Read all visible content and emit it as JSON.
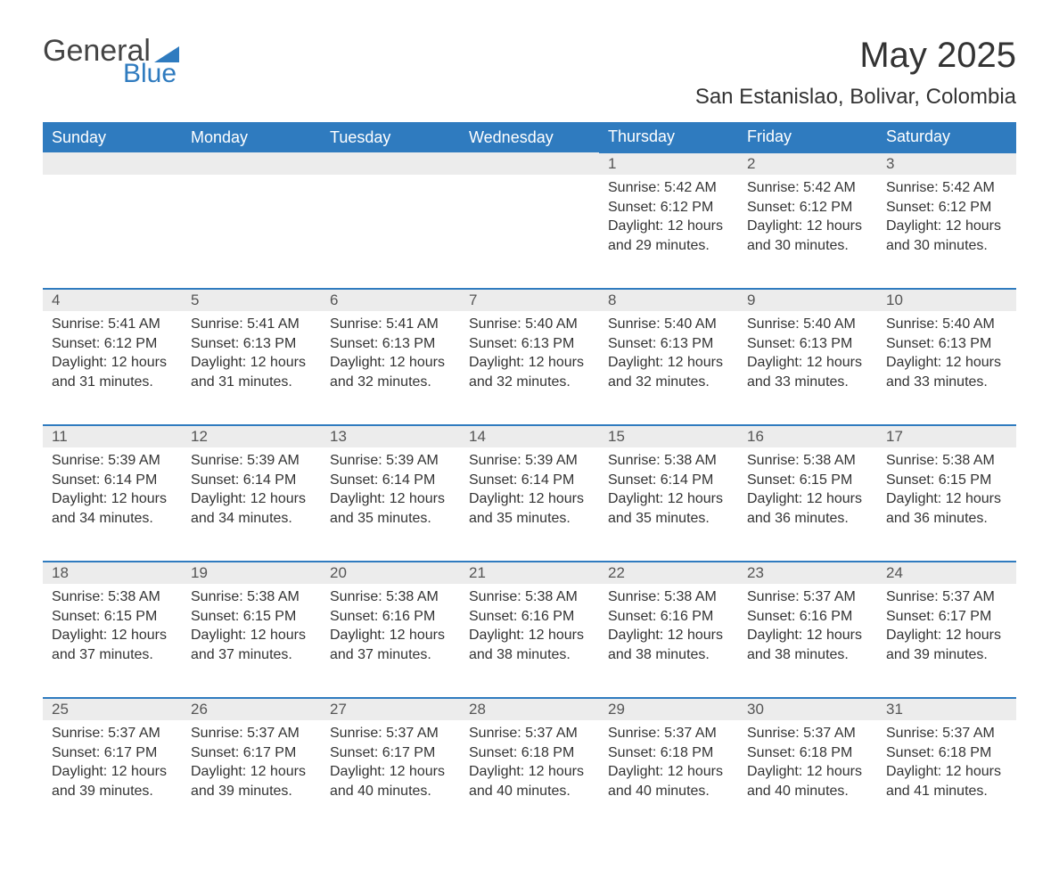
{
  "logo": {
    "general": "General",
    "blue": "Blue"
  },
  "title": "May 2025",
  "location": "San Estanislao, Bolivar, Colombia",
  "colors": {
    "header_bg": "#2f7bbf",
    "header_fg": "#ffffff",
    "daynum_bg": "#ececec",
    "text": "#333333"
  },
  "day_headers": [
    "Sunday",
    "Monday",
    "Tuesday",
    "Wednesday",
    "Thursday",
    "Friday",
    "Saturday"
  ],
  "weeks": [
    [
      null,
      null,
      null,
      null,
      {
        "n": "1",
        "sr": "5:42 AM",
        "ss": "6:12 PM",
        "dl": "12 hours and 29 minutes."
      },
      {
        "n": "2",
        "sr": "5:42 AM",
        "ss": "6:12 PM",
        "dl": "12 hours and 30 minutes."
      },
      {
        "n": "3",
        "sr": "5:42 AM",
        "ss": "6:12 PM",
        "dl": "12 hours and 30 minutes."
      }
    ],
    [
      {
        "n": "4",
        "sr": "5:41 AM",
        "ss": "6:12 PM",
        "dl": "12 hours and 31 minutes."
      },
      {
        "n": "5",
        "sr": "5:41 AM",
        "ss": "6:13 PM",
        "dl": "12 hours and 31 minutes."
      },
      {
        "n": "6",
        "sr": "5:41 AM",
        "ss": "6:13 PM",
        "dl": "12 hours and 32 minutes."
      },
      {
        "n": "7",
        "sr": "5:40 AM",
        "ss": "6:13 PM",
        "dl": "12 hours and 32 minutes."
      },
      {
        "n": "8",
        "sr": "5:40 AM",
        "ss": "6:13 PM",
        "dl": "12 hours and 32 minutes."
      },
      {
        "n": "9",
        "sr": "5:40 AM",
        "ss": "6:13 PM",
        "dl": "12 hours and 33 minutes."
      },
      {
        "n": "10",
        "sr": "5:40 AM",
        "ss": "6:13 PM",
        "dl": "12 hours and 33 minutes."
      }
    ],
    [
      {
        "n": "11",
        "sr": "5:39 AM",
        "ss": "6:14 PM",
        "dl": "12 hours and 34 minutes."
      },
      {
        "n": "12",
        "sr": "5:39 AM",
        "ss": "6:14 PM",
        "dl": "12 hours and 34 minutes."
      },
      {
        "n": "13",
        "sr": "5:39 AM",
        "ss": "6:14 PM",
        "dl": "12 hours and 35 minutes."
      },
      {
        "n": "14",
        "sr": "5:39 AM",
        "ss": "6:14 PM",
        "dl": "12 hours and 35 minutes."
      },
      {
        "n": "15",
        "sr": "5:38 AM",
        "ss": "6:14 PM",
        "dl": "12 hours and 35 minutes."
      },
      {
        "n": "16",
        "sr": "5:38 AM",
        "ss": "6:15 PM",
        "dl": "12 hours and 36 minutes."
      },
      {
        "n": "17",
        "sr": "5:38 AM",
        "ss": "6:15 PM",
        "dl": "12 hours and 36 minutes."
      }
    ],
    [
      {
        "n": "18",
        "sr": "5:38 AM",
        "ss": "6:15 PM",
        "dl": "12 hours and 37 minutes."
      },
      {
        "n": "19",
        "sr": "5:38 AM",
        "ss": "6:15 PM",
        "dl": "12 hours and 37 minutes."
      },
      {
        "n": "20",
        "sr": "5:38 AM",
        "ss": "6:16 PM",
        "dl": "12 hours and 37 minutes."
      },
      {
        "n": "21",
        "sr": "5:38 AM",
        "ss": "6:16 PM",
        "dl": "12 hours and 38 minutes."
      },
      {
        "n": "22",
        "sr": "5:38 AM",
        "ss": "6:16 PM",
        "dl": "12 hours and 38 minutes."
      },
      {
        "n": "23",
        "sr": "5:37 AM",
        "ss": "6:16 PM",
        "dl": "12 hours and 38 minutes."
      },
      {
        "n": "24",
        "sr": "5:37 AM",
        "ss": "6:17 PM",
        "dl": "12 hours and 39 minutes."
      }
    ],
    [
      {
        "n": "25",
        "sr": "5:37 AM",
        "ss": "6:17 PM",
        "dl": "12 hours and 39 minutes."
      },
      {
        "n": "26",
        "sr": "5:37 AM",
        "ss": "6:17 PM",
        "dl": "12 hours and 39 minutes."
      },
      {
        "n": "27",
        "sr": "5:37 AM",
        "ss": "6:17 PM",
        "dl": "12 hours and 40 minutes."
      },
      {
        "n": "28",
        "sr": "5:37 AM",
        "ss": "6:18 PM",
        "dl": "12 hours and 40 minutes."
      },
      {
        "n": "29",
        "sr": "5:37 AM",
        "ss": "6:18 PM",
        "dl": "12 hours and 40 minutes."
      },
      {
        "n": "30",
        "sr": "5:37 AM",
        "ss": "6:18 PM",
        "dl": "12 hours and 40 minutes."
      },
      {
        "n": "31",
        "sr": "5:37 AM",
        "ss": "6:18 PM",
        "dl": "12 hours and 41 minutes."
      }
    ]
  ],
  "labels": {
    "sunrise": "Sunrise:",
    "sunset": "Sunset:",
    "daylight": "Daylight:"
  }
}
